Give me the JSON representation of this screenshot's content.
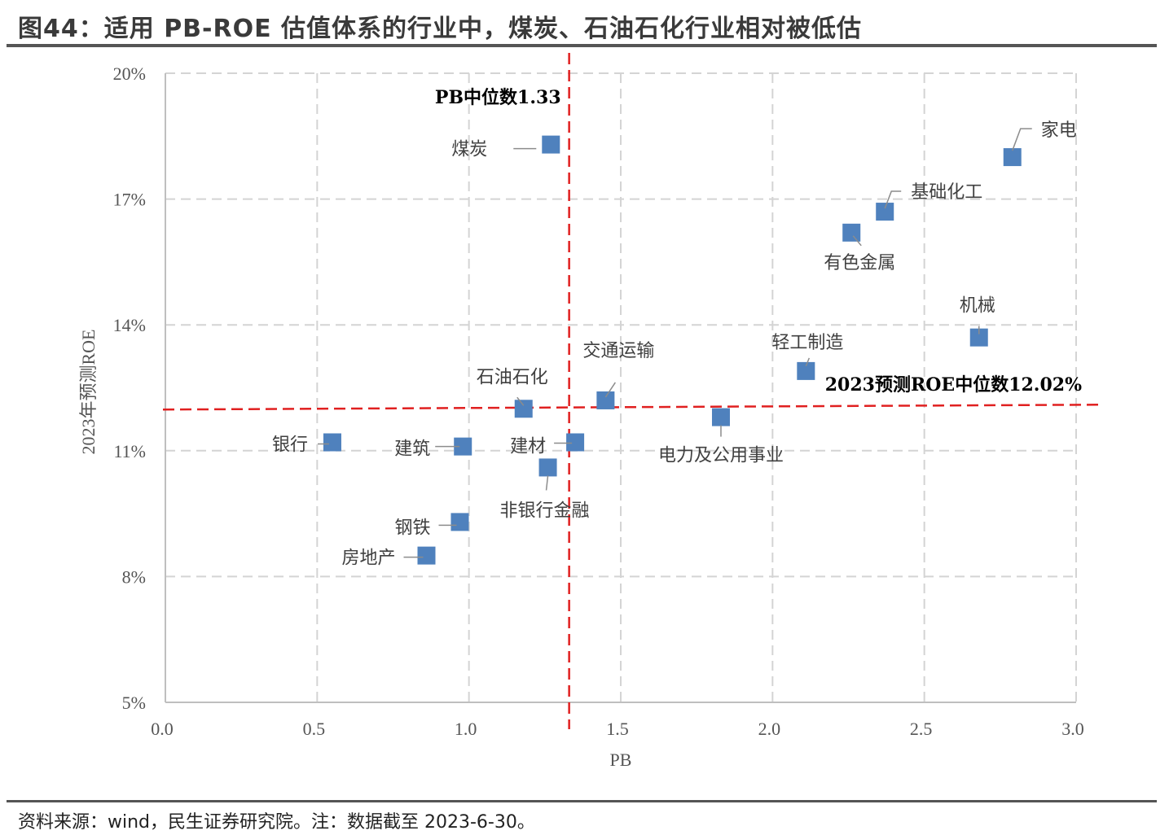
{
  "figure": {
    "title": "图44：适用 PB-ROE 估值体系的行业中，煤炭、石油石化行业相对被低估",
    "source": "资料来源：wind，民生证券研究院。注：数据截至 2023-6-30。"
  },
  "chart_data": {
    "type": "scatter",
    "xlabel": "PB",
    "ylabel": "2023年预测ROE",
    "xlim": [
      0,
      3
    ],
    "ylim": [
      5,
      20
    ],
    "xticks": [
      0,
      0.5,
      1,
      1.5,
      2,
      2.5,
      3
    ],
    "xtick_labels": [
      "0.0",
      "0.5",
      "1.0",
      "1.5",
      "2.0",
      "2.5",
      "3.0"
    ],
    "yticks": [
      5,
      8,
      11,
      14,
      17,
      20
    ],
    "ytick_labels": [
      "5%",
      "8%",
      "11%",
      "14%",
      "17%",
      "20%"
    ],
    "grid": true,
    "marker_color": "#4f81bd",
    "points": [
      {
        "label": "煤炭",
        "x": 1.27,
        "y": 18.3
      },
      {
        "label": "家电",
        "x": 2.79,
        "y": 18.0
      },
      {
        "label": "基础化工",
        "x": 2.37,
        "y": 16.7
      },
      {
        "label": "有色金属",
        "x": 2.26,
        "y": 16.2
      },
      {
        "label": "机械",
        "x": 2.68,
        "y": 13.7
      },
      {
        "label": "轻工制造",
        "x": 2.11,
        "y": 12.9
      },
      {
        "label": "交通运输",
        "x": 1.45,
        "y": 12.2
      },
      {
        "label": "石油石化",
        "x": 1.18,
        "y": 12.0
      },
      {
        "label": "电力及公用事业",
        "x": 1.83,
        "y": 11.8
      },
      {
        "label": "银行",
        "x": 0.55,
        "y": 11.2
      },
      {
        "label": "建筑",
        "x": 0.98,
        "y": 11.1
      },
      {
        "label": "建材",
        "x": 1.35,
        "y": 11.2
      },
      {
        "label": "非银行金融",
        "x": 1.26,
        "y": 10.6
      },
      {
        "label": "钢铁",
        "x": 0.97,
        "y": 9.3
      },
      {
        "label": "房地产",
        "x": 0.86,
        "y": 8.5
      }
    ],
    "reference_lines": {
      "pb_median": {
        "value": 1.33,
        "label": "PB中位数1.33",
        "color": "#e02020"
      },
      "roe_median": {
        "value": 12.02,
        "label": "2023预测ROE中位数12.02%",
        "color": "#e02020"
      }
    }
  }
}
